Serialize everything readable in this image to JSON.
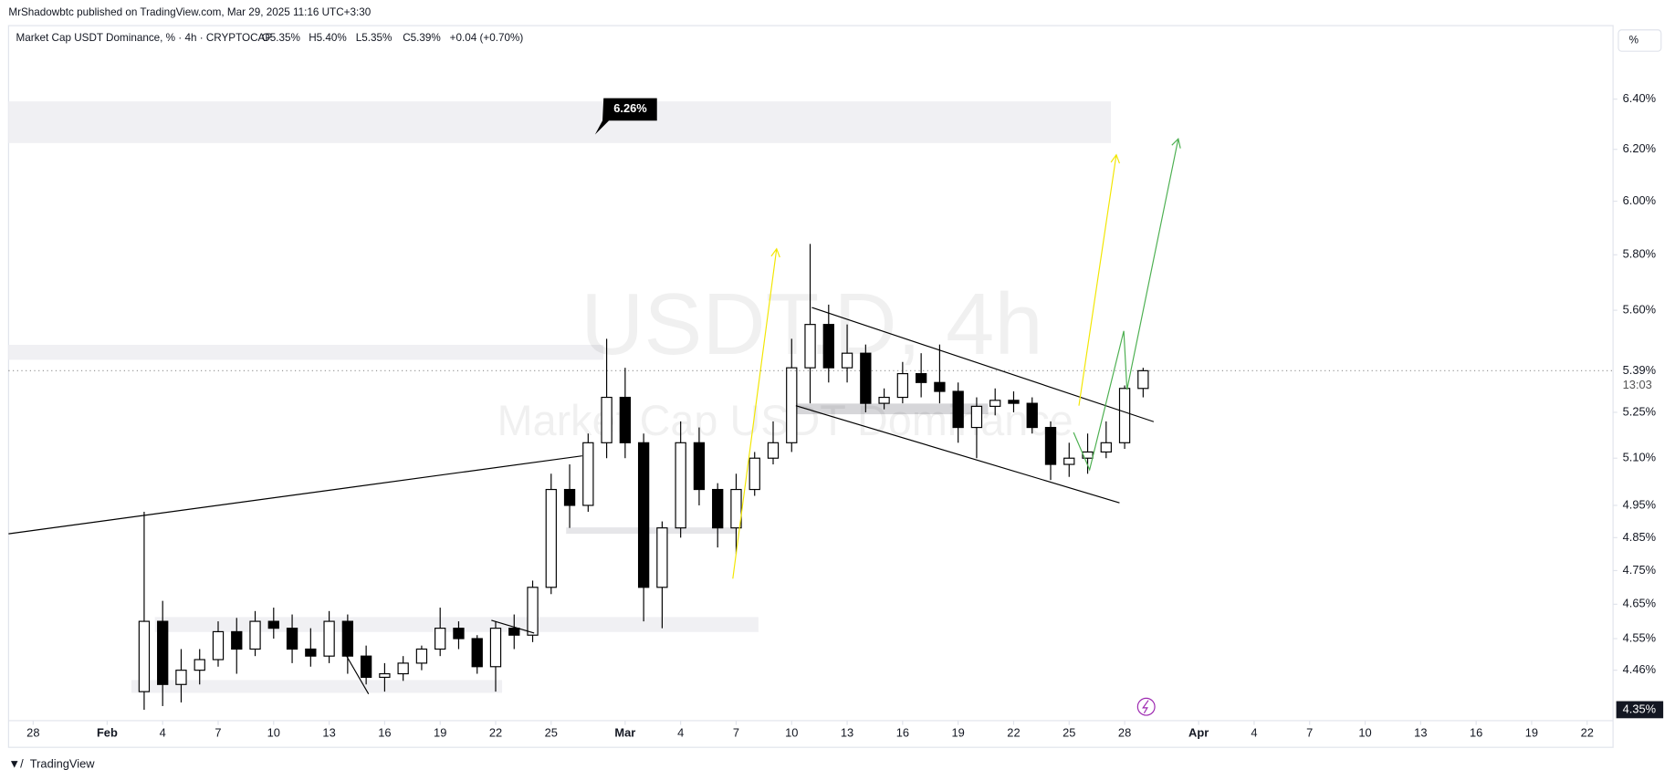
{
  "header": {
    "published": "MrShadowbtc published on TradingView.com, Mar 29, 2025 11:16 UTC+3:30",
    "footer": "TradingView",
    "scale_button": "%"
  },
  "chart_data": {
    "type": "candlestick",
    "symbol": "Market Cap USDT Dominance, % · 4h · CRYPTOCAP",
    "ohlc_legend": [
      "O5.35%",
      "H5.40%",
      "L5.35%",
      "C5.39%",
      "+0.04 (+0.70%)"
    ],
    "watermark": [
      "USDT.D, 4h",
      "Market Cap USDT Dominance"
    ],
    "annotation": "6.26%",
    "log": true,
    "up_color": "#ffffff",
    "down_color": "#000000",
    "wick_color": "#000000",
    "last_price": {
      "value": 5.39,
      "label": "5.39%"
    },
    "countdown": "13:03",
    "x": [
      6,
      7,
      8,
      9,
      10,
      11,
      12,
      13,
      14,
      15,
      16,
      17,
      18,
      19,
      20,
      21,
      22,
      23,
      24,
      25,
      26,
      27,
      28,
      29,
      30,
      31,
      32,
      33,
      34,
      35,
      36,
      37,
      38,
      39,
      40,
      41,
      42,
      43,
      44,
      45,
      46,
      47,
      48,
      49,
      50,
      51,
      52,
      53,
      54,
      55,
      56,
      57,
      58,
      59,
      60
    ],
    "open": [
      4.4,
      4.6,
      4.42,
      4.46,
      4.49,
      4.57,
      4.52,
      4.6,
      4.58,
      4.52,
      4.5,
      4.6,
      4.5,
      4.44,
      4.45,
      4.48,
      4.52,
      4.58,
      4.55,
      4.47,
      4.58,
      4.56,
      4.7,
      5.0,
      4.95,
      5.15,
      5.3,
      5.15,
      4.7,
      4.88,
      5.15,
      5.0,
      4.88,
      5.0,
      5.1,
      5.15,
      5.4,
      5.55,
      5.4,
      5.45,
      5.28,
      5.3,
      5.38,
      5.35,
      5.32,
      5.2,
      5.27,
      5.29,
      5.28,
      5.2,
      5.08,
      5.1,
      5.12,
      5.15,
      5.33
    ],
    "high": [
      4.93,
      4.66,
      4.52,
      4.52,
      4.6,
      4.61,
      4.63,
      4.64,
      4.62,
      4.58,
      4.63,
      4.62,
      4.53,
      4.48,
      4.5,
      4.53,
      4.64,
      4.6,
      4.56,
      4.6,
      4.62,
      4.72,
      5.05,
      5.08,
      5.18,
      5.5,
      5.4,
      5.18,
      4.9,
      5.22,
      5.2,
      5.02,
      5.05,
      5.12,
      5.22,
      5.5,
      5.84,
      5.62,
      5.55,
      5.48,
      5.33,
      5.42,
      5.45,
      5.48,
      5.35,
      5.3,
      5.33,
      5.32,
      5.3,
      5.22,
      5.15,
      5.18,
      5.22,
      5.34,
      5.4
    ],
    "low": [
      4.35,
      4.36,
      4.37,
      4.42,
      4.47,
      4.45,
      4.5,
      4.55,
      4.48,
      4.47,
      4.48,
      4.45,
      4.42,
      4.4,
      4.43,
      4.46,
      4.5,
      4.52,
      4.45,
      4.4,
      4.52,
      4.54,
      4.68,
      4.88,
      4.93,
      5.1,
      5.1,
      4.6,
      4.58,
      4.85,
      4.95,
      4.82,
      4.8,
      4.98,
      5.08,
      5.12,
      5.28,
      5.35,
      5.35,
      5.25,
      5.26,
      5.28,
      5.3,
      5.28,
      5.15,
      5.1,
      5.24,
      5.25,
      5.18,
      5.03,
      5.04,
      5.05,
      5.1,
      5.13,
      5.3
    ],
    "close": [
      4.6,
      4.42,
      4.46,
      4.49,
      4.57,
      4.52,
      4.6,
      4.58,
      4.52,
      4.5,
      4.6,
      4.5,
      4.44,
      4.45,
      4.48,
      4.52,
      4.58,
      4.55,
      4.47,
      4.58,
      4.56,
      4.7,
      5.0,
      4.95,
      5.15,
      5.3,
      5.15,
      4.7,
      4.88,
      5.15,
      5.0,
      4.88,
      5.0,
      5.1,
      5.15,
      5.4,
      5.55,
      5.4,
      5.45,
      5.28,
      5.3,
      5.38,
      5.35,
      5.32,
      5.2,
      5.27,
      5.29,
      5.28,
      5.2,
      5.08,
      5.1,
      5.12,
      5.15,
      5.33,
      5.39
    ],
    "xlim": [
      -1.33,
      85.4
    ],
    "xticks": [
      {
        "value": 0,
        "label": "28"
      },
      {
        "value": 4,
        "label": "Feb"
      },
      {
        "value": 7,
        "label": "4"
      },
      {
        "value": 10,
        "label": "7"
      },
      {
        "value": 13,
        "label": "10"
      },
      {
        "value": 16,
        "label": "13"
      },
      {
        "value": 19,
        "label": "16"
      },
      {
        "value": 22,
        "label": "19"
      },
      {
        "value": 25,
        "label": "22"
      },
      {
        "value": 28,
        "label": "25"
      },
      {
        "value": 32,
        "label": "Mar"
      },
      {
        "value": 35,
        "label": "4"
      },
      {
        "value": 38,
        "label": "7"
      },
      {
        "value": 41,
        "label": "10"
      },
      {
        "value": 44,
        "label": "13"
      },
      {
        "value": 47,
        "label": "16"
      },
      {
        "value": 50,
        "label": "19"
      },
      {
        "value": 53,
        "label": "22"
      },
      {
        "value": 56,
        "label": "25"
      },
      {
        "value": 59,
        "label": "28"
      },
      {
        "value": 63,
        "label": "Apr"
      },
      {
        "value": 66,
        "label": "4"
      },
      {
        "value": 69,
        "label": "7"
      },
      {
        "value": 72,
        "label": "10"
      },
      {
        "value": 75,
        "label": "13"
      },
      {
        "value": 78,
        "label": "16"
      },
      {
        "value": 81,
        "label": "19"
      },
      {
        "value": 84,
        "label": "22"
      }
    ],
    "ylim": [
      4.32,
      6.7
    ],
    "yticks": [
      {
        "value": 6.4,
        "label": "6.40%"
      },
      {
        "value": 6.2,
        "label": "6.20%"
      },
      {
        "value": 6.0,
        "label": "6.00%"
      },
      {
        "value": 5.8,
        "label": "5.80%"
      },
      {
        "value": 5.6,
        "label": "5.60%"
      },
      {
        "value": 5.25,
        "label": "5.25%"
      },
      {
        "value": 5.1,
        "label": "5.10%"
      },
      {
        "value": 4.95,
        "label": "4.95%"
      },
      {
        "value": 4.85,
        "label": "4.85%"
      },
      {
        "value": 4.75,
        "label": "4.75%"
      },
      {
        "value": 4.65,
        "label": "4.65%"
      },
      {
        "value": 4.55,
        "label": "4.55%"
      },
      {
        "value": 4.46,
        "label": "4.46%"
      }
    ],
    "crosshair_price": {
      "value": 4.35,
      "label": "4.35%"
    }
  }
}
